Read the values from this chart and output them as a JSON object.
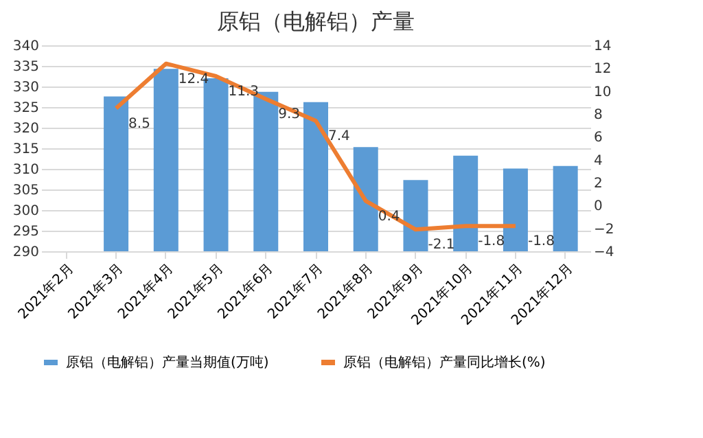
{
  "chart_data": {
    "type": "bar",
    "title": "原铝（电解铝）产量",
    "categories": [
      "2021年2月",
      "2021年3月",
      "2021年4月",
      "2021年5月",
      "2021年6月",
      "2021年7月",
      "2021年8月",
      "2021年9月",
      "2021年10月",
      "2021年11月",
      "2021年12月"
    ],
    "series": [
      {
        "name": "原铝（电解铝）产量当期值(万吨)",
        "color": "#5b9bd5",
        "values": [
          null,
          327.6,
          334.3,
          332.0,
          328.7,
          326.2,
          315.3,
          307.3,
          313.2,
          310.1,
          310.7
        ]
      },
      {
        "name": "原铝（电解铝）产量同比增长(%)",
        "type": "line",
        "axis": "y2",
        "color": "#ed7d31",
        "values": [
          null,
          8.5,
          12.4,
          11.3,
          9.3,
          7.4,
          0.4,
          -2.1,
          -1.8,
          -1.8,
          null
        ],
        "value_labels": [
          null,
          "8.5",
          "12.4",
          "11.3",
          "9.3",
          "7.4",
          "0.4",
          "-2.1",
          "-1.8",
          "-1.8",
          null
        ]
      }
    ],
    "ylim": [
      290,
      340
    ],
    "yticks": [
      290,
      295,
      300,
      305,
      310,
      315,
      320,
      325,
      330,
      335,
      340
    ],
    "y2lim": [
      -4,
      14
    ],
    "y2ticks": [
      -4,
      -2,
      0,
      2,
      4,
      6,
      8,
      10,
      12,
      14
    ],
    "grid": "y",
    "legend": "bottom",
    "marker": "none",
    "line_style": "solid"
  }
}
